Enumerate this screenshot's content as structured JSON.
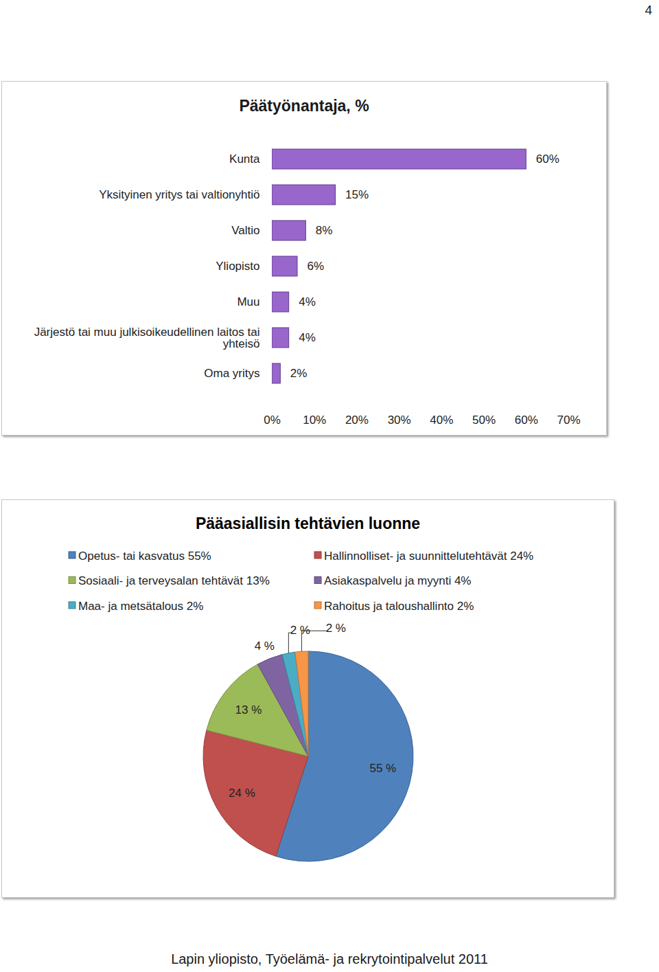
{
  "page_number": "4",
  "footer": "Lapin yliopisto, Työelämä- ja rekrytointipalvelut 2011",
  "chart_data": [
    {
      "type": "bar",
      "orientation": "horizontal",
      "title": "Päätyönantaja, %",
      "categories": [
        "Kunta",
        "Yksityinen yritys tai valtionyhtiö",
        "Valtio",
        "Yliopisto",
        "Muu",
        "Järjestö tai muu julkisoikeudellinen laitos tai yhteisö",
        "Oma yritys"
      ],
      "values": [
        60,
        15,
        8,
        6,
        4,
        4,
        2
      ],
      "value_labels": [
        "60%",
        "15%",
        "8%",
        "6%",
        "4%",
        "4%",
        "2%"
      ],
      "color": "#9966cc",
      "xlim": [
        0,
        70
      ],
      "xticks": [
        {
          "value": 0,
          "label": "0%"
        },
        {
          "value": 10,
          "label": "10%"
        },
        {
          "value": 20,
          "label": "20%"
        },
        {
          "value": 30,
          "label": "30%"
        },
        {
          "value": 40,
          "label": "40%"
        },
        {
          "value": 50,
          "label": "50%"
        },
        {
          "value": 60,
          "label": "60%"
        },
        {
          "value": 70,
          "label": "70%"
        }
      ],
      "data_labels": true
    },
    {
      "type": "pie",
      "title": "Pääasiallisin tehtävien luonne",
      "categories": [
        "Opetus- tai kasvatus 55%",
        "Hallinnolliset- ja suunnittelutehtävät 24%",
        "Sosiaali- ja terveysalan tehtävät 13%",
        "Asiakaspalvelu ja myynti 4%",
        "Maa- ja metsätalous 2%",
        "Rahoitus ja taloushallinto 2%"
      ],
      "values": [
        55,
        24,
        13,
        4,
        2,
        2
      ],
      "value_labels": [
        "55 %",
        "24 %",
        "13 %",
        "4 %",
        "2 %",
        "2 %"
      ],
      "colors": [
        "#4f81bd",
        "#c0504d",
        "#9bbb59",
        "#8064a2",
        "#4bacc6",
        "#f79646"
      ],
      "legend": "top",
      "data_labels": true
    }
  ]
}
